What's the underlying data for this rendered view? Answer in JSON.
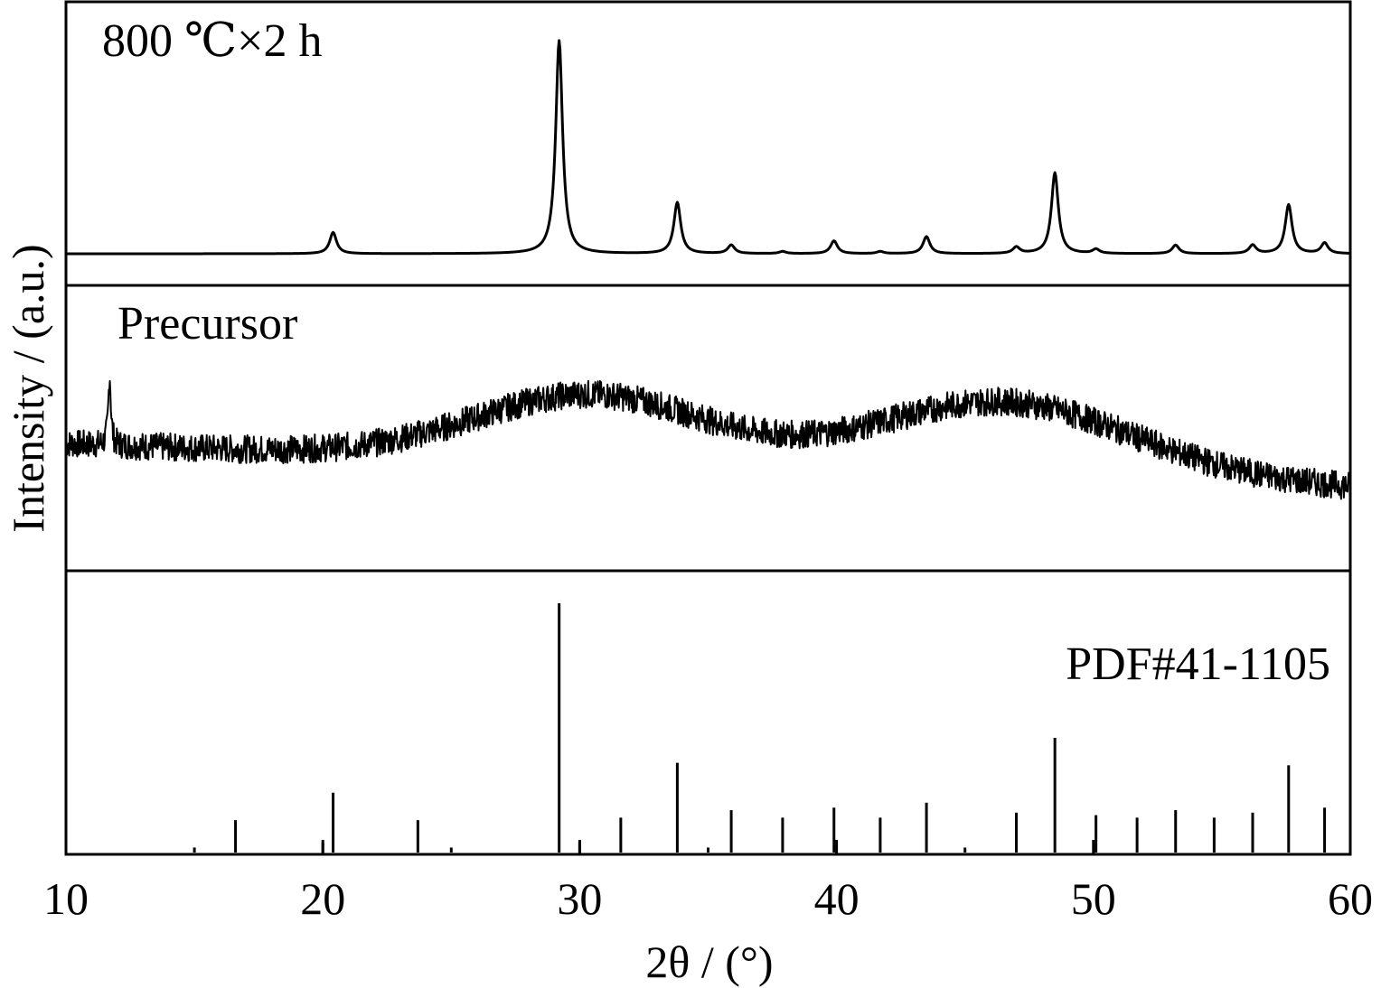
{
  "chart_data": {
    "type": "line",
    "xlabel": "2θ / (°)",
    "ylabel": "Intensity / (a.u.)",
    "xlim": [
      10,
      60
    ],
    "x_ticks": [
      10,
      20,
      30,
      40,
      50,
      60
    ],
    "x_tick_labels": [
      "10",
      "20",
      "30",
      "40",
      "50",
      "60"
    ],
    "grid": false,
    "panels": [
      {
        "label": "800 ℃×2 h",
        "peaks": [
          {
            "x": 20.4,
            "y": 0.1
          },
          {
            "x": 29.2,
            "y": 1.0
          },
          {
            "x": 33.8,
            "y": 0.24
          },
          {
            "x": 35.9,
            "y": 0.04
          },
          {
            "x": 37.9,
            "y": 0.01
          },
          {
            "x": 39.9,
            "y": 0.06
          },
          {
            "x": 41.7,
            "y": 0.01
          },
          {
            "x": 43.5,
            "y": 0.08
          },
          {
            "x": 47.0,
            "y": 0.03
          },
          {
            "x": 48.5,
            "y": 0.38
          },
          {
            "x": 50.1,
            "y": 0.02
          },
          {
            "x": 53.2,
            "y": 0.04
          },
          {
            "x": 56.2,
            "y": 0.04
          },
          {
            "x": 57.6,
            "y": 0.23
          },
          {
            "x": 59.0,
            "y": 0.05
          }
        ]
      },
      {
        "label": "Precursor",
        "sharp_peak": {
          "x": 11.7,
          "y": 0.4
        },
        "humps": [
          {
            "center": 30.5,
            "height": 0.38,
            "width": 4.5
          },
          {
            "center": 46.5,
            "height": 0.42,
            "width": 5.0
          }
        ],
        "baseline": {
          "start": 0.25,
          "end": 0.0
        }
      },
      {
        "label": "PDF#41-1105",
        "type": "stick",
        "sticks": [
          {
            "x": 15.0,
            "y": 0.02
          },
          {
            "x": 16.6,
            "y": 0.13
          },
          {
            "x": 20.0,
            "y": 0.04
          },
          {
            "x": 20.4,
            "y": 0.24
          },
          {
            "x": 23.7,
            "y": 0.13
          },
          {
            "x": 25.0,
            "y": 0.02
          },
          {
            "x": 29.2,
            "y": 1.0
          },
          {
            "x": 30.0,
            "y": 0.04
          },
          {
            "x": 31.6,
            "y": 0.14
          },
          {
            "x": 33.8,
            "y": 0.36
          },
          {
            "x": 35.0,
            "y": 0.02
          },
          {
            "x": 35.9,
            "y": 0.17
          },
          {
            "x": 37.9,
            "y": 0.14
          },
          {
            "x": 39.9,
            "y": 0.18
          },
          {
            "x": 41.7,
            "y": 0.14
          },
          {
            "x": 43.5,
            "y": 0.2
          },
          {
            "x": 45.0,
            "y": 0.02
          },
          {
            "x": 47.0,
            "y": 0.16
          },
          {
            "x": 48.5,
            "y": 0.46
          },
          {
            "x": 50.1,
            "y": 0.15
          },
          {
            "x": 51.7,
            "y": 0.14
          },
          {
            "x": 53.2,
            "y": 0.17
          },
          {
            "x": 54.7,
            "y": 0.14
          },
          {
            "x": 56.2,
            "y": 0.16
          },
          {
            "x": 57.6,
            "y": 0.35
          },
          {
            "x": 59.0,
            "y": 0.18
          }
        ]
      }
    ]
  }
}
